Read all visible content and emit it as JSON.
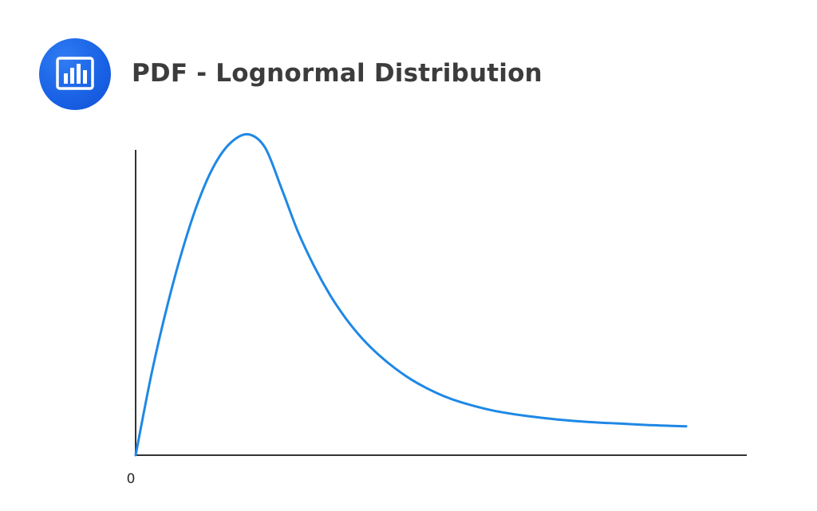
{
  "header": {
    "title": "PDF - Lognormal Distribution",
    "icon": "bar-chart-icon",
    "badge_color": "#1a63e6"
  },
  "chart_data": {
    "type": "line",
    "title": "PDF - Lognormal Distribution",
    "xlabel": "",
    "ylabel": "",
    "x_tick_labels": [
      "0"
    ],
    "grid": false,
    "legend": "none",
    "xlim": [
      0,
      3.4
    ],
    "ylim": [
      0,
      0.68
    ],
    "series": [
      {
        "color": "#1e88e5",
        "x": [
          0,
          0.1,
          0.2,
          0.3,
          0.4,
          0.5,
          0.6,
          0.7,
          0.8,
          0.9,
          1.0,
          1.1,
          1.2,
          1.3,
          1.4,
          1.5,
          1.6,
          1.7,
          1.8,
          1.9,
          2.0,
          2.2,
          2.4,
          2.6,
          2.8,
          3.0,
          3.2,
          3.4
        ],
        "y": [
          0,
          0.155,
          0.285,
          0.395,
          0.485,
          0.55,
          0.588,
          0.6,
          0.575,
          0.5,
          0.42,
          0.355,
          0.3,
          0.255,
          0.218,
          0.188,
          0.163,
          0.142,
          0.125,
          0.111,
          0.1,
          0.084,
          0.074,
          0.067,
          0.062,
          0.059,
          0.056,
          0.054
        ]
      }
    ]
  }
}
